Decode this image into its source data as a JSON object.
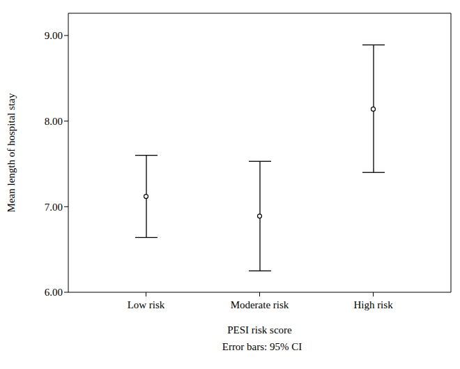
{
  "chart_data": {
    "type": "errorbar",
    "xlabel": "PESI risk score",
    "ylabel": "Mean length of hospital stay",
    "annotations": [
      "Error bars: 95% CI"
    ],
    "categories": [
      "Low risk",
      "Moderate risk",
      "High risk"
    ],
    "values": [
      7.12,
      6.89,
      8.14
    ],
    "ci_lower": [
      6.64,
      6.25,
      7.4
    ],
    "ci_upper": [
      7.6,
      7.53,
      8.89
    ],
    "color": "#000000",
    "marker": "circle",
    "ylim": [
      6,
      9.26
    ],
    "yticks": [
      {
        "value": 6,
        "label": "6.00"
      },
      {
        "value": 7,
        "label": "7.00"
      },
      {
        "value": 8,
        "label": "8.00"
      },
      {
        "value": 9,
        "label": "9.00"
      }
    ]
  }
}
